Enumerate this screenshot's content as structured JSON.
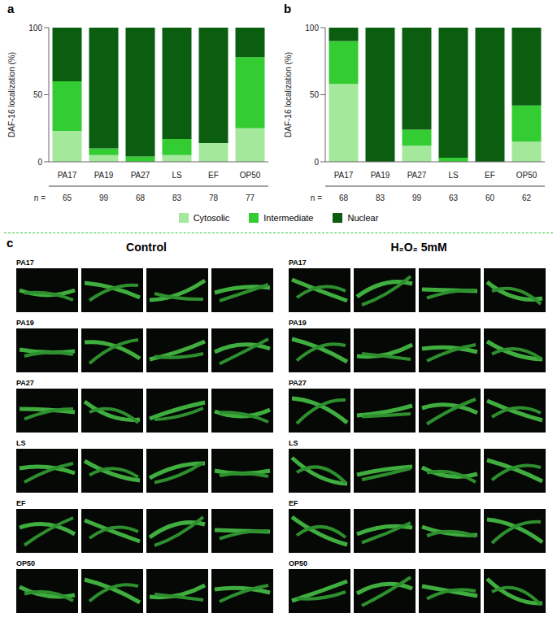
{
  "chart_data": [
    {
      "panel": "a",
      "type": "bar",
      "stacked": true,
      "ylabel": "DAF-16 localization (%)",
      "categories": [
        "PA17",
        "PA19",
        "PA27",
        "LS",
        "EF",
        "OP50"
      ],
      "series": [
        {
          "name": "Cytosolic",
          "color": "#a3e89b",
          "values": [
            23,
            5,
            0,
            5,
            14,
            25
          ]
        },
        {
          "name": "Intermediate",
          "color": "#33cc33",
          "values": [
            37,
            5,
            4,
            12,
            0,
            53
          ]
        },
        {
          "name": "Nuclear",
          "color": "#0b5e10",
          "values": [
            40,
            90,
            96,
            83,
            86,
            22
          ]
        }
      ],
      "ylim": [
        0,
        100
      ],
      "yticks": [
        0,
        50,
        100
      ],
      "n_label": "n =",
      "n": [
        65,
        99,
        68,
        83,
        78,
        77
      ],
      "legend": "bottom"
    },
    {
      "panel": "b",
      "type": "bar",
      "stacked": true,
      "ylabel": "DAF-16 localization (%)",
      "categories": [
        "PA17",
        "PA19",
        "PA27",
        "LS",
        "EF",
        "OP50"
      ],
      "series": [
        {
          "name": "Cytosolic",
          "color": "#a3e89b",
          "values": [
            58,
            0,
            12,
            0,
            0,
            15
          ]
        },
        {
          "name": "Intermediate",
          "color": "#33cc33",
          "values": [
            32,
            0,
            12,
            3,
            0,
            27
          ]
        },
        {
          "name": "Nuclear",
          "color": "#0b5e10",
          "values": [
            10,
            100,
            76,
            97,
            100,
            58
          ]
        }
      ],
      "ylim": [
        0,
        100
      ],
      "yticks": [
        0,
        50,
        100
      ],
      "n_label": "n =",
      "n": [
        68,
        83,
        99,
        63,
        60,
        62
      ]
    }
  ],
  "image_panel": {
    "panel": "c",
    "columns": [
      "Control",
      "H₂O₂ 5mM"
    ],
    "rows": [
      "PA17",
      "PA19",
      "PA27",
      "LS",
      "EF",
      "OP50"
    ]
  }
}
